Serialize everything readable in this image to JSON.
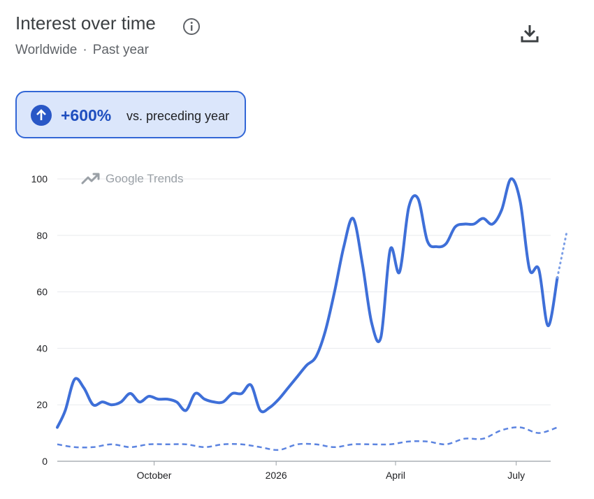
{
  "header": {
    "title": "Interest over time",
    "region": "Worldwide",
    "separator": "·",
    "period": "Past year"
  },
  "badge": {
    "change": "+600%",
    "label": "vs. preceding year",
    "accent": "#1f4fbf",
    "background": "#dbe6fb"
  },
  "watermark": "Google Trends",
  "icons": [
    "info-icon",
    "download-icon",
    "arrow-up-icon",
    "trends-logo-icon"
  ],
  "chart_data": {
    "type": "line",
    "title": "",
    "xlabel": "",
    "ylabel": "",
    "ylim": [
      0,
      100
    ],
    "yticks": [
      0,
      20,
      40,
      60,
      80,
      100
    ],
    "xlim": [
      "2025-07-20",
      "2026-07-25"
    ],
    "xticks": [
      {
        "label": "October",
        "date": "2025-10-01"
      },
      {
        "label": "2026",
        "date": "2026-01-01"
      },
      {
        "label": "April",
        "date": "2026-04-01"
      },
      {
        "label": "July",
        "date": "2026-07-01"
      }
    ],
    "grid": true,
    "series": [
      {
        "style": "solid",
        "color": "#3e6fd8",
        "points": [
          [
            "2025-07-20",
            12
          ],
          [
            "2025-07-26",
            18
          ],
          [
            "2025-08-02",
            29
          ],
          [
            "2025-08-09",
            26
          ],
          [
            "2025-08-16",
            20
          ],
          [
            "2025-08-23",
            21
          ],
          [
            "2025-08-30",
            20
          ],
          [
            "2025-09-06",
            21
          ],
          [
            "2025-09-13",
            24
          ],
          [
            "2025-09-20",
            21
          ],
          [
            "2025-09-27",
            23
          ],
          [
            "2025-10-04",
            22
          ],
          [
            "2025-10-11",
            22
          ],
          [
            "2025-10-18",
            21
          ],
          [
            "2025-10-25",
            18
          ],
          [
            "2025-11-01",
            24
          ],
          [
            "2025-11-08",
            22
          ],
          [
            "2025-11-15",
            21
          ],
          [
            "2025-11-22",
            21
          ],
          [
            "2025-11-29",
            24
          ],
          [
            "2025-12-06",
            24
          ],
          [
            "2025-12-13",
            27
          ],
          [
            "2025-12-20",
            18
          ],
          [
            "2025-12-27",
            19
          ],
          [
            "2026-01-03",
            22
          ],
          [
            "2026-01-10",
            26
          ],
          [
            "2026-01-17",
            30
          ],
          [
            "2026-01-24",
            34
          ],
          [
            "2026-01-31",
            37
          ],
          [
            "2026-02-07",
            46
          ],
          [
            "2026-02-14",
            60
          ],
          [
            "2026-02-21",
            76
          ],
          [
            "2026-02-28",
            86
          ],
          [
            "2026-03-07",
            70
          ],
          [
            "2026-03-14",
            49
          ],
          [
            "2026-03-21",
            44
          ],
          [
            "2026-03-28",
            75
          ],
          [
            "2026-04-04",
            67
          ],
          [
            "2026-04-11",
            90
          ],
          [
            "2026-04-18",
            93
          ],
          [
            "2026-04-25",
            78
          ],
          [
            "2026-05-02",
            76
          ],
          [
            "2026-05-09",
            77
          ],
          [
            "2026-05-16",
            83
          ],
          [
            "2026-05-23",
            84
          ],
          [
            "2026-05-30",
            84
          ],
          [
            "2026-06-06",
            86
          ],
          [
            "2026-06-13",
            84
          ],
          [
            "2026-06-20",
            89
          ],
          [
            "2026-06-27",
            100
          ],
          [
            "2026-07-04",
            92
          ],
          [
            "2026-07-11",
            68
          ],
          [
            "2026-07-18",
            68
          ],
          [
            "2026-07-25",
            48
          ],
          [
            "2026-08-01",
            65
          ]
        ]
      },
      {
        "style": "dashed",
        "color": "#5c84e0",
        "points": [
          [
            "2025-07-20",
            6
          ],
          [
            "2025-08-02",
            5
          ],
          [
            "2025-08-16",
            5
          ],
          [
            "2025-08-30",
            6
          ],
          [
            "2025-09-13",
            5
          ],
          [
            "2025-09-27",
            6
          ],
          [
            "2025-10-11",
            6
          ],
          [
            "2025-10-25",
            6
          ],
          [
            "2025-11-08",
            5
          ],
          [
            "2025-11-22",
            6
          ],
          [
            "2025-12-06",
            6
          ],
          [
            "2025-12-20",
            5
          ],
          [
            "2026-01-03",
            4
          ],
          [
            "2026-01-17",
            6
          ],
          [
            "2026-01-31",
            6
          ],
          [
            "2026-02-14",
            5
          ],
          [
            "2026-02-28",
            6
          ],
          [
            "2026-03-14",
            6
          ],
          [
            "2026-03-28",
            6
          ],
          [
            "2026-04-11",
            7
          ],
          [
            "2026-04-25",
            7
          ],
          [
            "2026-05-09",
            6
          ],
          [
            "2026-05-23",
            8
          ],
          [
            "2026-06-06",
            8
          ],
          [
            "2026-06-20",
            11
          ],
          [
            "2026-07-04",
            12
          ],
          [
            "2026-07-18",
            10
          ],
          [
            "2026-08-01",
            12
          ]
        ]
      },
      {
        "style": "dotted",
        "color": "#7b9ee6",
        "points": [
          [
            "2026-08-01",
            65
          ],
          [
            "2026-08-08",
            81
          ]
        ]
      }
    ]
  }
}
